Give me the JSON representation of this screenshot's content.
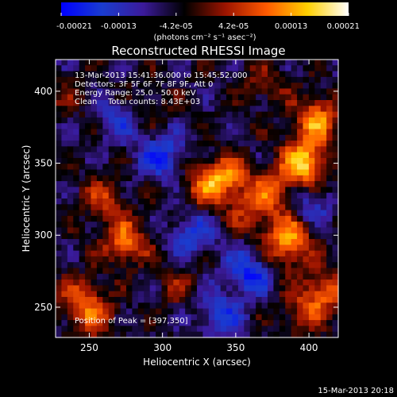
{
  "chart_data": {
    "type": "heatmap",
    "title": "Reconstructed RHESSI Image",
    "xlabel": "Heliocentric X (arcsec)",
    "ylabel": "Heliocentric Y (arcsec)",
    "xlim": [
      227,
      420
    ],
    "ylim": [
      229,
      422
    ],
    "x_ticks": [
      250,
      300,
      350,
      400
    ],
    "y_ticks": [
      250,
      300,
      350,
      400
    ],
    "colorbar": {
      "min": -0.00021,
      "max": 0.00021,
      "tick_labels": [
        "-0.00021",
        "-0.00013",
        "-4.2e-05",
        "4.2e-05",
        "0.00013",
        "0.00021"
      ],
      "unit_label": "(photons cm⁻² s⁻¹ asec⁻²)",
      "colors": [
        "#0000ff",
        "#1a3ccf",
        "#3b1a9a",
        "#000000",
        "#9c1400",
        "#ff5a00",
        "#ffd000",
        "#ffffff"
      ]
    },
    "annotations": {
      "time": "13-Mar-2013 15:41:36.000 to 15:45:52.000",
      "detectors": "Detectors: 3F 5F 6F 7F 8F 9F, Att 0",
      "energy": "Energy Range: 25.0 - 50.0 keV",
      "method": "Clean",
      "counts": "Total counts: 8.43E+03",
      "peak": "Position of Peak = [397,350]"
    },
    "features": [
      {
        "x": 397,
        "y": 350,
        "value": 0.00021
      },
      {
        "x": 405,
        "y": 380,
        "value": 0.00016
      },
      {
        "x": 388,
        "y": 300,
        "value": 0.00015
      },
      {
        "x": 375,
        "y": 330,
        "value": 0.00011
      },
      {
        "x": 330,
        "y": 335,
        "value": 0.00012
      },
      {
        "x": 345,
        "y": 340,
        "value": 0.00012
      },
      {
        "x": 275,
        "y": 295,
        "value": 0.00014
      },
      {
        "x": 260,
        "y": 325,
        "value": 9e-05
      },
      {
        "x": 245,
        "y": 255,
        "value": 0.00012
      },
      {
        "x": 255,
        "y": 240,
        "value": 7e-05
      },
      {
        "x": 360,
        "y": 315,
        "value": 8e-05
      },
      {
        "x": 410,
        "y": 260,
        "value": 0.00012
      },
      {
        "x": 395,
        "y": 245,
        "value": 8e-05
      },
      {
        "x": 235,
        "y": 395,
        "value": 4e-05
      },
      {
        "x": 310,
        "y": 265,
        "value": 5e-05
      },
      {
        "x": 290,
        "y": 390,
        "value": 4e-05
      },
      {
        "x": 370,
        "y": 405,
        "value": 6e-05
      },
      {
        "x": 380,
        "y": 285,
        "value": 7e-05
      },
      {
        "x": 300,
        "y": 355,
        "value": -0.00012
      },
      {
        "x": 360,
        "y": 275,
        "value": -0.00014
      },
      {
        "x": 320,
        "y": 300,
        "value": -0.0001
      },
      {
        "x": 340,
        "y": 245,
        "value": -0.0001
      },
      {
        "x": 270,
        "y": 380,
        "value": -8e-05
      },
      {
        "x": 400,
        "y": 320,
        "value": -9e-05
      }
    ]
  },
  "footer": {
    "date": "15-Mar-2013 20:18"
  }
}
